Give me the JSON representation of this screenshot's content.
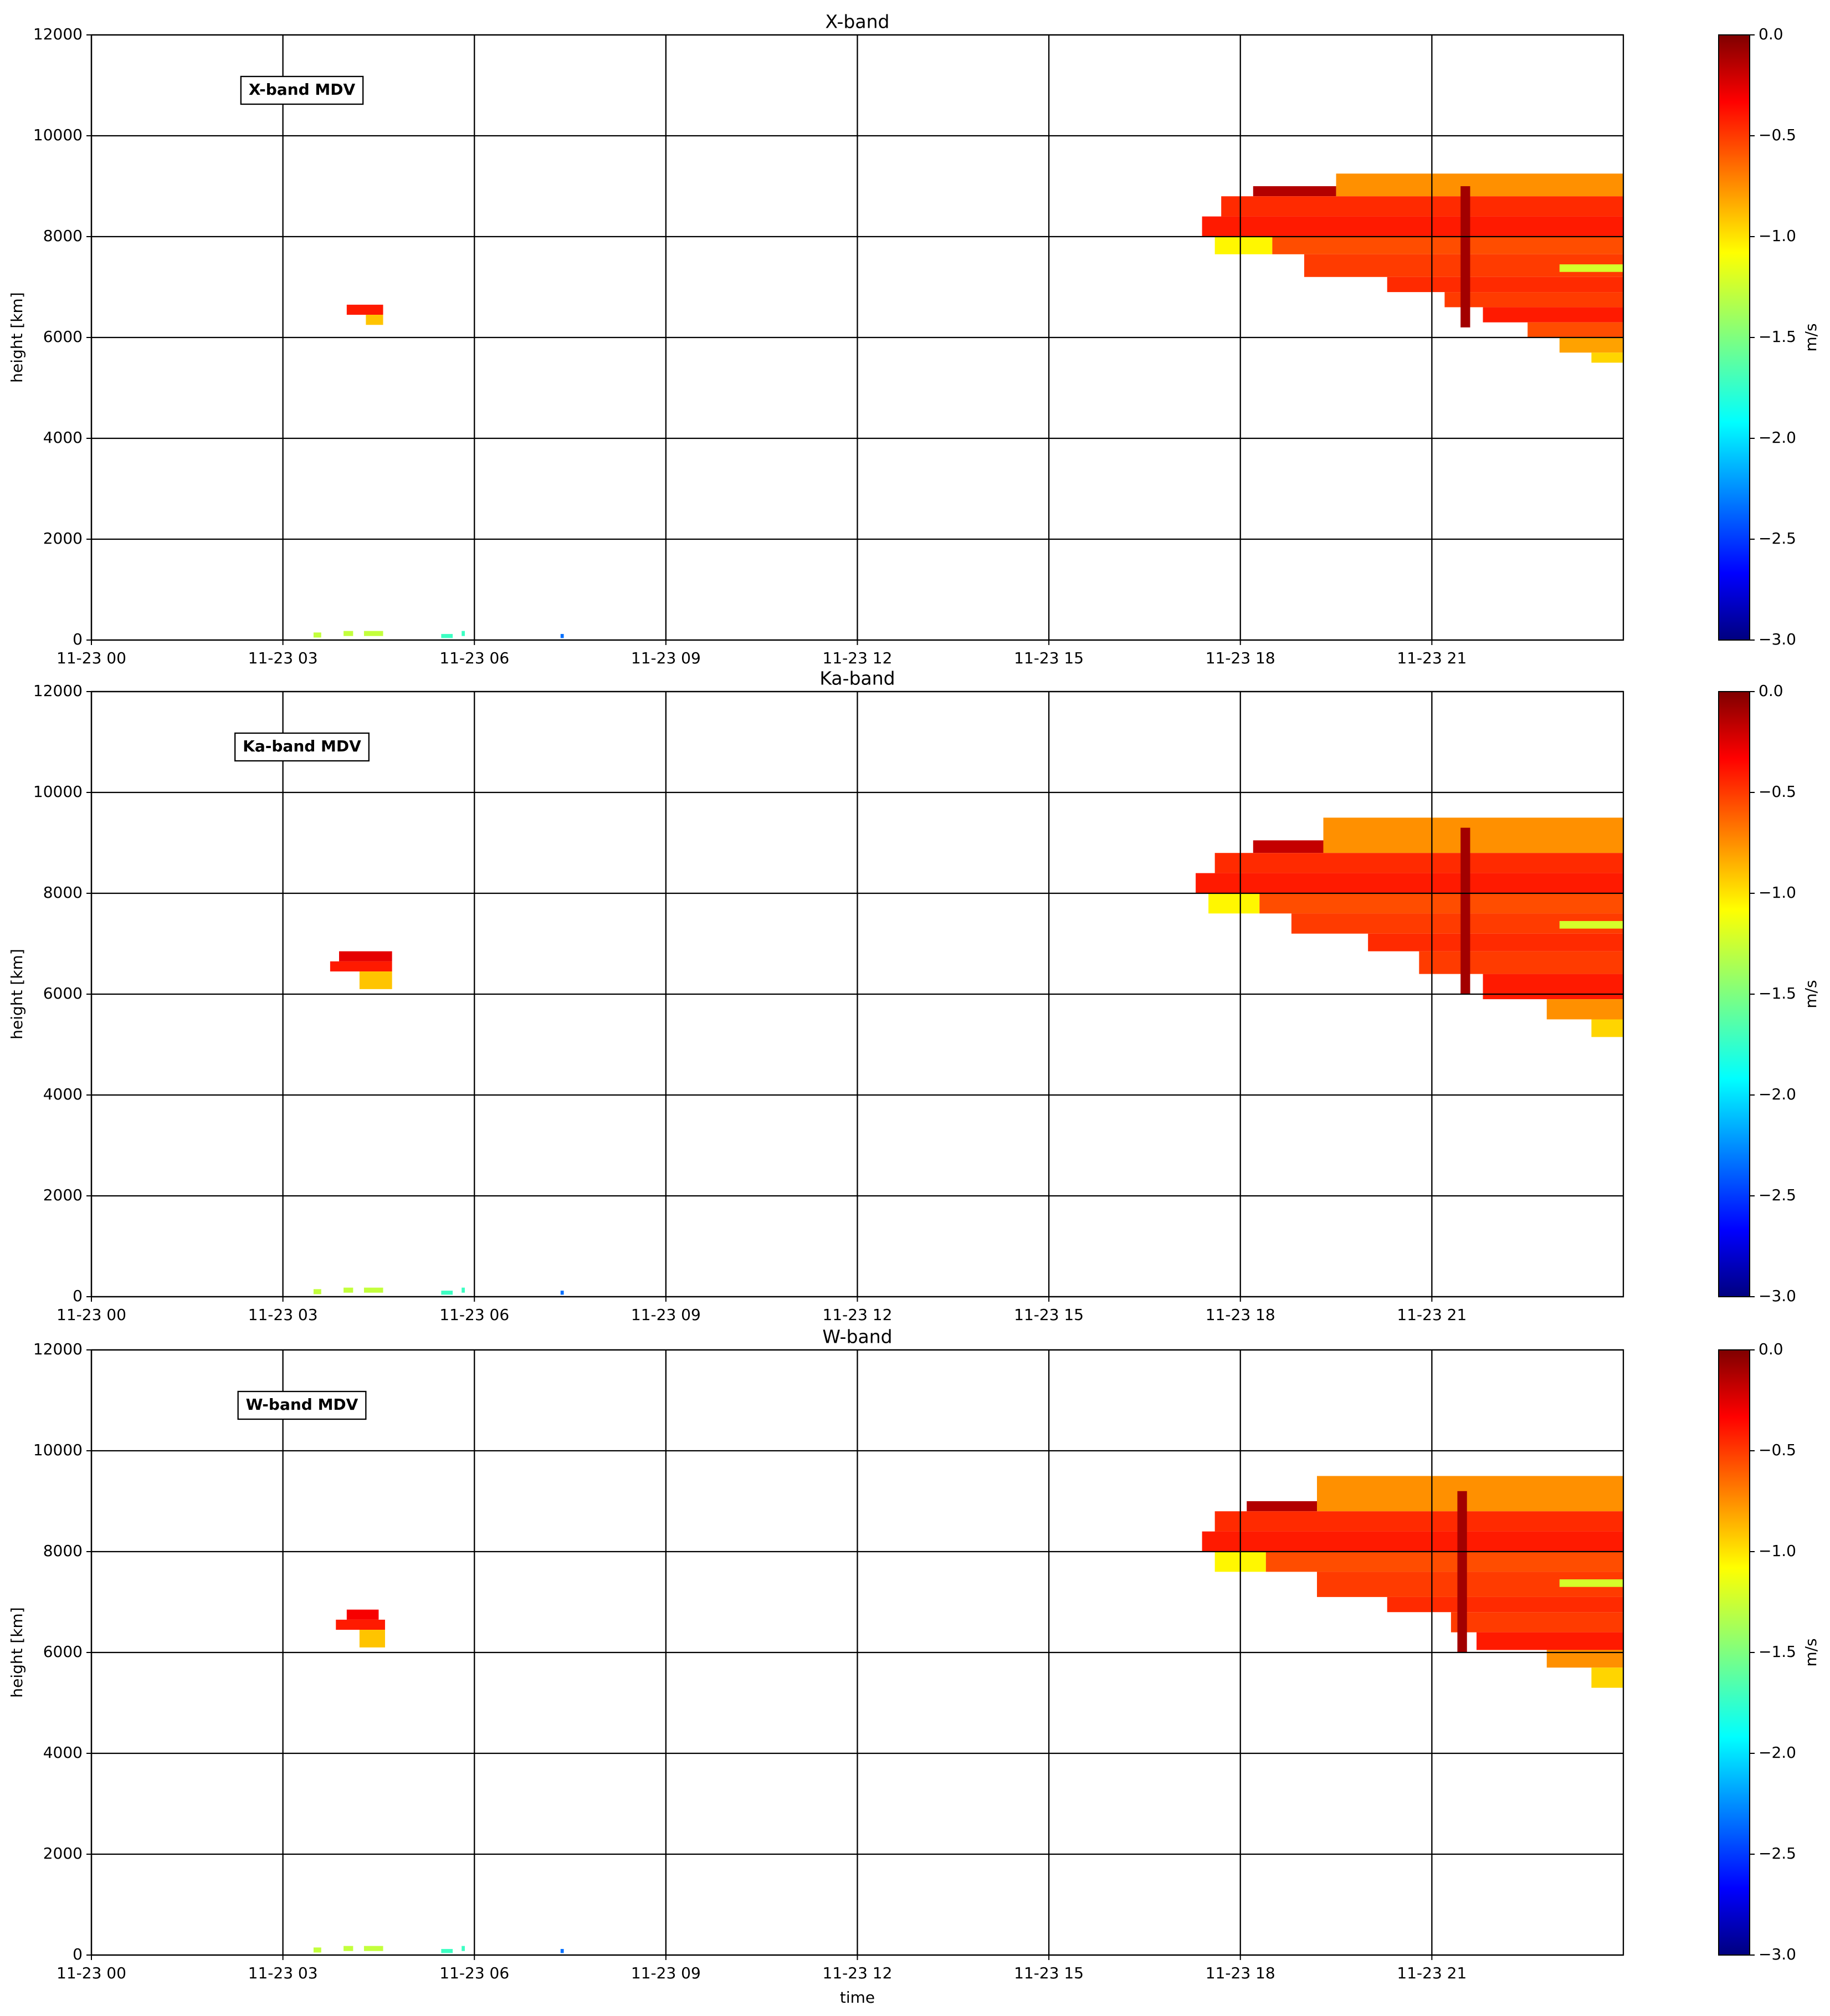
{
  "chart_data": [
    {
      "type": "heatmap",
      "title": "X-band",
      "annotation": "X-band MDV",
      "ylabel": "height [km]",
      "colorbar_label": "m/s",
      "colormap": "jet",
      "clim": [
        -3,
        0
      ],
      "grid": true,
      "xlim": [
        0,
        24
      ],
      "ylim": [
        0,
        12000
      ],
      "xticks": [
        {
          "value": 0,
          "label": "11-23 00"
        },
        {
          "value": 3,
          "label": "11-23 03"
        },
        {
          "value": 6,
          "label": "11-23 06"
        },
        {
          "value": 9,
          "label": "11-23 09"
        },
        {
          "value": 12,
          "label": "11-23 12"
        },
        {
          "value": 15,
          "label": "11-23 15"
        },
        {
          "value": 18,
          "label": "11-23 18"
        },
        {
          "value": 21,
          "label": "11-23 21"
        }
      ],
      "yticks": [
        0,
        2000,
        4000,
        6000,
        8000,
        10000,
        12000
      ],
      "cbar_ticks": [
        {
          "value": 0,
          "label": "0.0"
        },
        {
          "value": -0.5,
          "label": "−0.5"
        },
        {
          "value": -1,
          "label": "−1.0"
        },
        {
          "value": -1.5,
          "label": "−1.5"
        },
        {
          "value": -2,
          "label": "−2.0"
        },
        {
          "value": -2.5,
          "label": "−2.5"
        },
        {
          "value": -3,
          "label": "−3.0"
        }
      ],
      "cells": [
        {
          "x": [
            4.0,
            4.57
          ],
          "y": [
            6450,
            6650
          ],
          "value": -0.45
        },
        {
          "x": [
            4.3,
            4.57
          ],
          "y": [
            6250,
            6450
          ],
          "value": -0.95
        },
        {
          "x": [
            3.48,
            3.6
          ],
          "y": [
            50,
            150
          ],
          "value": -1.3
        },
        {
          "x": [
            3.95,
            4.1
          ],
          "y": [
            80,
            180
          ],
          "value": -1.3
        },
        {
          "x": [
            4.27,
            4.57
          ],
          "y": [
            80,
            180
          ],
          "value": -1.3
        },
        {
          "x": [
            5.48,
            5.66
          ],
          "y": [
            40,
            120
          ],
          "value": -1.7
        },
        {
          "x": [
            5.8,
            5.85
          ],
          "y": [
            80,
            180
          ],
          "value": -1.7
        },
        {
          "x": [
            7.35,
            7.4
          ],
          "y": [
            40,
            120
          ],
          "value": -2.3
        },
        {
          "x": [
            18.2,
            19.5
          ],
          "y": [
            8800,
            9000
          ],
          "value": -0.15
        },
        {
          "x": [
            19.5,
            24
          ],
          "y": [
            8800,
            9250
          ],
          "value": -0.8
        },
        {
          "x": [
            17.7,
            24
          ],
          "y": [
            8400,
            8800
          ],
          "value": -0.5
        },
        {
          "x": [
            17.4,
            24
          ],
          "y": [
            8000,
            8400
          ],
          "value": -0.45
        },
        {
          "x": [
            17.6,
            18.5
          ],
          "y": [
            7650,
            8000
          ],
          "value": -1.1
        },
        {
          "x": [
            18.5,
            24
          ],
          "y": [
            7650,
            8000
          ],
          "value": -0.6
        },
        {
          "x": [
            19,
            24
          ],
          "y": [
            7200,
            7650
          ],
          "value": -0.55
        },
        {
          "x": [
            20.3,
            24
          ],
          "y": [
            6900,
            7200
          ],
          "value": -0.5
        },
        {
          "x": [
            21.2,
            24
          ],
          "y": [
            6600,
            6900
          ],
          "value": -0.55
        },
        {
          "x": [
            21.8,
            24
          ],
          "y": [
            6300,
            6600
          ],
          "value": -0.45
        },
        {
          "x": [
            22.5,
            24
          ],
          "y": [
            6000,
            6300
          ],
          "value": -0.6
        },
        {
          "x": [
            23,
            24
          ],
          "y": [
            5700,
            6000
          ],
          "value": -0.85
        },
        {
          "x": [
            23.5,
            24
          ],
          "y": [
            5500,
            5700
          ],
          "value": -1.0
        },
        {
          "x": [
            23,
            24
          ],
          "y": [
            7300,
            7450
          ],
          "value": -1.25
        },
        {
          "x": [
            21.45,
            21.6
          ],
          "y": [
            6200,
            9000
          ],
          "value": -0.1
        }
      ]
    },
    {
      "type": "heatmap",
      "title": "Ka-band",
      "annotation": "Ka-band MDV",
      "ylabel": "height [km]",
      "colorbar_label": "m/s",
      "colormap": "jet",
      "clim": [
        -3,
        0
      ],
      "grid": true,
      "xlim": [
        0,
        24
      ],
      "ylim": [
        0,
        12000
      ],
      "xticks": [
        {
          "value": 0,
          "label": "11-23 00"
        },
        {
          "value": 3,
          "label": "11-23 03"
        },
        {
          "value": 6,
          "label": "11-23 06"
        },
        {
          "value": 9,
          "label": "11-23 09"
        },
        {
          "value": 12,
          "label": "11-23 12"
        },
        {
          "value": 15,
          "label": "11-23 15"
        },
        {
          "value": 18,
          "label": "11-23 18"
        },
        {
          "value": 21,
          "label": "11-23 21"
        }
      ],
      "yticks": [
        0,
        2000,
        4000,
        6000,
        8000,
        10000,
        12000
      ],
      "cbar_ticks": [
        {
          "value": 0,
          "label": "0.0"
        },
        {
          "value": -0.5,
          "label": "−0.5"
        },
        {
          "value": -1,
          "label": "−1.0"
        },
        {
          "value": -1.5,
          "label": "−1.5"
        },
        {
          "value": -2,
          "label": "−2.0"
        },
        {
          "value": -2.5,
          "label": "−2.5"
        },
        {
          "value": -3,
          "label": "−3.0"
        }
      ],
      "cells": [
        {
          "x": [
            3.88,
            4.71
          ],
          "y": [
            6650,
            6850
          ],
          "value": -0.3
        },
        {
          "x": [
            3.74,
            4.71
          ],
          "y": [
            6450,
            6650
          ],
          "value": -0.45
        },
        {
          "x": [
            4.2,
            4.71
          ],
          "y": [
            6100,
            6450
          ],
          "value": -0.95
        },
        {
          "x": [
            3.48,
            3.6
          ],
          "y": [
            50,
            150
          ],
          "value": -1.3
        },
        {
          "x": [
            3.95,
            4.1
          ],
          "y": [
            80,
            180
          ],
          "value": -1.3
        },
        {
          "x": [
            4.27,
            4.57
          ],
          "y": [
            80,
            180
          ],
          "value": -1.3
        },
        {
          "x": [
            5.48,
            5.66
          ],
          "y": [
            40,
            120
          ],
          "value": -1.7
        },
        {
          "x": [
            5.8,
            5.85
          ],
          "y": [
            80,
            180
          ],
          "value": -1.7
        },
        {
          "x": [
            7.35,
            7.4
          ],
          "y": [
            40,
            120
          ],
          "value": -2.3
        },
        {
          "x": [
            18.2,
            19.3
          ],
          "y": [
            8800,
            9050
          ],
          "value": -0.2
        },
        {
          "x": [
            19.3,
            24
          ],
          "y": [
            8800,
            9500
          ],
          "value": -0.8
        },
        {
          "x": [
            17.6,
            24
          ],
          "y": [
            8400,
            8800
          ],
          "value": -0.5
        },
        {
          "x": [
            17.3,
            24
          ],
          "y": [
            8000,
            8400
          ],
          "value": -0.45
        },
        {
          "x": [
            17.5,
            18.3
          ],
          "y": [
            7600,
            8000
          ],
          "value": -1.1
        },
        {
          "x": [
            18.3,
            24
          ],
          "y": [
            7600,
            8000
          ],
          "value": -0.6
        },
        {
          "x": [
            18.8,
            24
          ],
          "y": [
            7200,
            7600
          ],
          "value": -0.55
        },
        {
          "x": [
            20,
            24
          ],
          "y": [
            6850,
            7200
          ],
          "value": -0.5
        },
        {
          "x": [
            20.8,
            24
          ],
          "y": [
            6400,
            6850
          ],
          "value": -0.55
        },
        {
          "x": [
            21.8,
            24
          ],
          "y": [
            5900,
            6400
          ],
          "value": -0.45
        },
        {
          "x": [
            22.8,
            24
          ],
          "y": [
            5500,
            5900
          ],
          "value": -0.8
        },
        {
          "x": [
            23.5,
            24
          ],
          "y": [
            5150,
            5500
          ],
          "value": -1.0
        },
        {
          "x": [
            23,
            24
          ],
          "y": [
            7300,
            7450
          ],
          "value": -1.25
        },
        {
          "x": [
            21.45,
            21.6
          ],
          "y": [
            6000,
            9300
          ],
          "value": -0.1
        }
      ]
    },
    {
      "type": "heatmap",
      "title": "W-band",
      "annotation": "W-band MDV",
      "ylabel": "height [km]",
      "xlabel": "time",
      "colorbar_label": "m/s",
      "colormap": "jet",
      "clim": [
        -3,
        0
      ],
      "grid": true,
      "xlim": [
        0,
        24
      ],
      "ylim": [
        0,
        12000
      ],
      "xticks": [
        {
          "value": 0,
          "label": "11-23 00"
        },
        {
          "value": 3,
          "label": "11-23 03"
        },
        {
          "value": 6,
          "label": "11-23 06"
        },
        {
          "value": 9,
          "label": "11-23 09"
        },
        {
          "value": 12,
          "label": "11-23 12"
        },
        {
          "value": 15,
          "label": "11-23 15"
        },
        {
          "value": 18,
          "label": "11-23 18"
        },
        {
          "value": 21,
          "label": "11-23 21"
        }
      ],
      "yticks": [
        0,
        2000,
        4000,
        6000,
        8000,
        10000,
        12000
      ],
      "cbar_ticks": [
        {
          "value": 0,
          "label": "0.0"
        },
        {
          "value": -0.5,
          "label": "−0.5"
        },
        {
          "value": -1,
          "label": "−1.0"
        },
        {
          "value": -1.5,
          "label": "−1.5"
        },
        {
          "value": -2,
          "label": "−2.0"
        },
        {
          "value": -2.5,
          "label": "−2.5"
        },
        {
          "value": -3,
          "label": "−3.0"
        }
      ],
      "cells": [
        {
          "x": [
            4.0,
            4.5
          ],
          "y": [
            6650,
            6850
          ],
          "value": -0.35
        },
        {
          "x": [
            3.83,
            4.6
          ],
          "y": [
            6450,
            6650
          ],
          "value": -0.45
        },
        {
          "x": [
            4.2,
            4.6
          ],
          "y": [
            6100,
            6450
          ],
          "value": -0.95
        },
        {
          "x": [
            3.48,
            3.6
          ],
          "y": [
            50,
            150
          ],
          "value": -1.3
        },
        {
          "x": [
            3.95,
            4.1
          ],
          "y": [
            80,
            180
          ],
          "value": -1.3
        },
        {
          "x": [
            4.27,
            4.57
          ],
          "y": [
            80,
            180
          ],
          "value": -1.3
        },
        {
          "x": [
            5.48,
            5.66
          ],
          "y": [
            40,
            120
          ],
          "value": -1.7
        },
        {
          "x": [
            5.8,
            5.85
          ],
          "y": [
            80,
            180
          ],
          "value": -1.7
        },
        {
          "x": [
            7.35,
            7.4
          ],
          "y": [
            40,
            120
          ],
          "value": -2.3
        },
        {
          "x": [
            18.1,
            19.2
          ],
          "y": [
            8800,
            9000
          ],
          "value": -0.15
        },
        {
          "x": [
            19.2,
            24
          ],
          "y": [
            8800,
            9500
          ],
          "value": -0.8
        },
        {
          "x": [
            17.6,
            24
          ],
          "y": [
            8400,
            8800
          ],
          "value": -0.5
        },
        {
          "x": [
            17.4,
            24
          ],
          "y": [
            8000,
            8400
          ],
          "value": -0.45
        },
        {
          "x": [
            17.6,
            18.4
          ],
          "y": [
            7600,
            8000
          ],
          "value": -1.1
        },
        {
          "x": [
            18.4,
            24
          ],
          "y": [
            7600,
            8000
          ],
          "value": -0.6
        },
        {
          "x": [
            19.2,
            24
          ],
          "y": [
            7100,
            7600
          ],
          "value": -0.55
        },
        {
          "x": [
            20.3,
            24
          ],
          "y": [
            6800,
            7100
          ],
          "value": -0.5
        },
        {
          "x": [
            21.3,
            24
          ],
          "y": [
            6400,
            6800
          ],
          "value": -0.55
        },
        {
          "x": [
            21.7,
            24
          ],
          "y": [
            6050,
            6400
          ],
          "value": -0.45
        },
        {
          "x": [
            22.8,
            24
          ],
          "y": [
            5700,
            6050
          ],
          "value": -0.8
        },
        {
          "x": [
            23.5,
            24
          ],
          "y": [
            5300,
            5700
          ],
          "value": -1.0
        },
        {
          "x": [
            23,
            24
          ],
          "y": [
            7300,
            7450
          ],
          "value": -1.25
        },
        {
          "x": [
            21.4,
            21.55
          ],
          "y": [
            6000,
            9200
          ],
          "value": -0.1
        }
      ]
    }
  ]
}
